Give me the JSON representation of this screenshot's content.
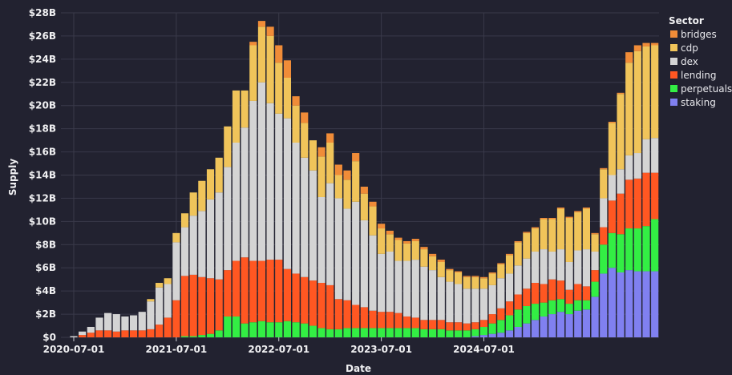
{
  "chart_data": {
    "type": "bar",
    "stacked": true,
    "title": "",
    "xlabel": "Date",
    "ylabel": "Supply",
    "ylim": [
      0,
      28
    ],
    "y_unit": "billion USD",
    "y_ticks": [
      "$0",
      "$2B",
      "$4B",
      "$6B",
      "$8B",
      "$10B",
      "$12B",
      "$14B",
      "$16B",
      "$18B",
      "$20B",
      "$22B",
      "$24B",
      "$26B",
      "$28B"
    ],
    "x_ticks": [
      "2020-07-01",
      "2021-07-01",
      "2022-07-01",
      "2023-07-01",
      "2024-07-01"
    ],
    "legend_title": "Sector",
    "legend_position": "right",
    "grid": true,
    "x_start": "2020-06",
    "bar_interval": "month",
    "series": [
      {
        "name": "staking",
        "color": "#8080f0",
        "values": [
          0,
          0,
          0,
          0,
          0,
          0,
          0,
          0,
          0,
          0,
          0,
          0,
          0,
          0,
          0,
          0,
          0,
          0,
          0,
          0,
          0,
          0,
          0,
          0,
          0,
          0,
          0,
          0,
          0,
          0,
          0,
          0,
          0,
          0,
          0,
          0,
          0,
          0,
          0,
          0,
          0,
          0,
          0,
          0,
          0,
          0,
          0,
          0,
          0.1,
          0.2,
          0.3,
          0.4,
          0.6,
          0.9,
          1.2,
          1.5,
          1.8,
          2.0,
          2.2,
          2.0,
          2.3,
          2.4,
          3.5,
          5.5,
          6.0,
          5.6,
          5.8,
          5.7,
          5.7,
          5.7
        ]
      },
      {
        "name": "perpetuals",
        "color": "#33ee44",
        "values": [
          0,
          0,
          0,
          0,
          0,
          0,
          0,
          0,
          0,
          0,
          0,
          0,
          0,
          0,
          0.1,
          0.1,
          0.2,
          0.3,
          0.6,
          1.8,
          1.8,
          1.2,
          1.3,
          1.4,
          1.3,
          1.3,
          1.4,
          1.3,
          1.2,
          1.0,
          0.8,
          0.7,
          0.7,
          0.8,
          0.8,
          0.8,
          0.8,
          0.8,
          0.8,
          0.8,
          0.8,
          0.8,
          0.7,
          0.7,
          0.7,
          0.6,
          0.6,
          0.6,
          0.6,
          0.7,
          0.9,
          1.1,
          1.3,
          1.5,
          1.5,
          1.4,
          1.2,
          1.2,
          1.1,
          0.9,
          0.9,
          0.8,
          1.3,
          2.5,
          3.0,
          3.3,
          3.6,
          3.7,
          3.9,
          4.5
        ]
      },
      {
        "name": "lending",
        "color": "#ff5722",
        "values": [
          0,
          0,
          0.2,
          0.4,
          0.6,
          0.6,
          0.5,
          0.6,
          0.6,
          0.6,
          0.7,
          1.1,
          1.7,
          3.2,
          5.2,
          5.3,
          5.0,
          4.8,
          4.4,
          4.0,
          4.8,
          5.7,
          5.3,
          5.2,
          5.4,
          5.4,
          4.5,
          4.2,
          4.0,
          3.9,
          3.9,
          3.8,
          2.6,
          2.4,
          2.0,
          1.8,
          1.5,
          1.4,
          1.4,
          1.3,
          1.0,
          0.9,
          0.8,
          0.8,
          0.8,
          0.7,
          0.7,
          0.6,
          0.6,
          0.6,
          0.8,
          1.0,
          1.2,
          1.3,
          1.5,
          1.8,
          1.6,
          1.8,
          1.6,
          1.2,
          1.4,
          1.2,
          1.0,
          1.5,
          2.8,
          3.5,
          4.2,
          4.3,
          4.6,
          4.0
        ]
      },
      {
        "name": "dex",
        "color": "#d4d4d4",
        "values": [
          0,
          0.1,
          0.3,
          0.5,
          1.1,
          1.5,
          1.5,
          1.2,
          1.3,
          1.6,
          2.4,
          3.2,
          2.9,
          5.0,
          4.2,
          5.1,
          5.7,
          6.8,
          7.5,
          8.9,
          10.2,
          11.2,
          13.8,
          15.4,
          13.5,
          12.6,
          13.0,
          11.3,
          10.3,
          9.5,
          7.4,
          8.8,
          8.7,
          7.9,
          8.9,
          7.5,
          6.5,
          5.0,
          5.2,
          4.5,
          4.8,
          5.0,
          4.6,
          4.3,
          3.7,
          3.5,
          3.3,
          3.0,
          2.9,
          2.7,
          2.5,
          2.6,
          2.4,
          2.5,
          2.6,
          2.7,
          3.0,
          2.4,
          2.7,
          2.4,
          2.9,
          3.2,
          1.6,
          2.5,
          2.2,
          2.1,
          2.1,
          2.2,
          2.9,
          3.0
        ]
      },
      {
        "name": "cdp",
        "color": "#f0c45a",
        "values": [
          0,
          0,
          0,
          0,
          0,
          0,
          0,
          0,
          0,
          0,
          0.2,
          0.4,
          0.5,
          0.8,
          1.2,
          2.0,
          2.6,
          2.6,
          3.0,
          3.5,
          4.5,
          3.2,
          4.8,
          4.8,
          5.8,
          4.4,
          3.5,
          3.2,
          3.0,
          2.6,
          3.5,
          3.5,
          2.0,
          2.5,
          3.5,
          2.3,
          2.5,
          2.2,
          1.5,
          1.8,
          1.5,
          1.6,
          1.5,
          1.2,
          1.3,
          1.0,
          1.0,
          1.0,
          1.0,
          0.9,
          1.0,
          1.2,
          1.6,
          2.0,
          2.2,
          2.0,
          2.6,
          2.8,
          3.5,
          3.8,
          3.3,
          3.5,
          1.5,
          2.5,
          4.5,
          6.5,
          8.0,
          8.8,
          8.0,
          8.0
        ]
      },
      {
        "name": "bridges",
        "color": "#f08c38",
        "values": [
          0,
          0,
          0,
          0,
          0,
          0,
          0,
          0,
          0,
          0,
          0,
          0,
          0,
          0,
          0,
          0,
          0,
          0,
          0,
          0,
          0,
          0,
          0.3,
          0.5,
          0.8,
          1.5,
          1.5,
          0.8,
          0.9,
          0,
          0.8,
          0.8,
          0.9,
          0.8,
          0.7,
          0.6,
          0.4,
          0.4,
          0.3,
          0.2,
          0.2,
          0.2,
          0.2,
          0.2,
          0.2,
          0.1,
          0.1,
          0.1,
          0.1,
          0.1,
          0.1,
          0.1,
          0.1,
          0.1,
          0.1,
          0.1,
          0.1,
          0.1,
          0.1,
          0.1,
          0.1,
          0.1,
          0.1,
          0.1,
          0.1,
          0.1,
          0.9,
          0.5,
          0.3,
          0.2
        ]
      }
    ]
  }
}
